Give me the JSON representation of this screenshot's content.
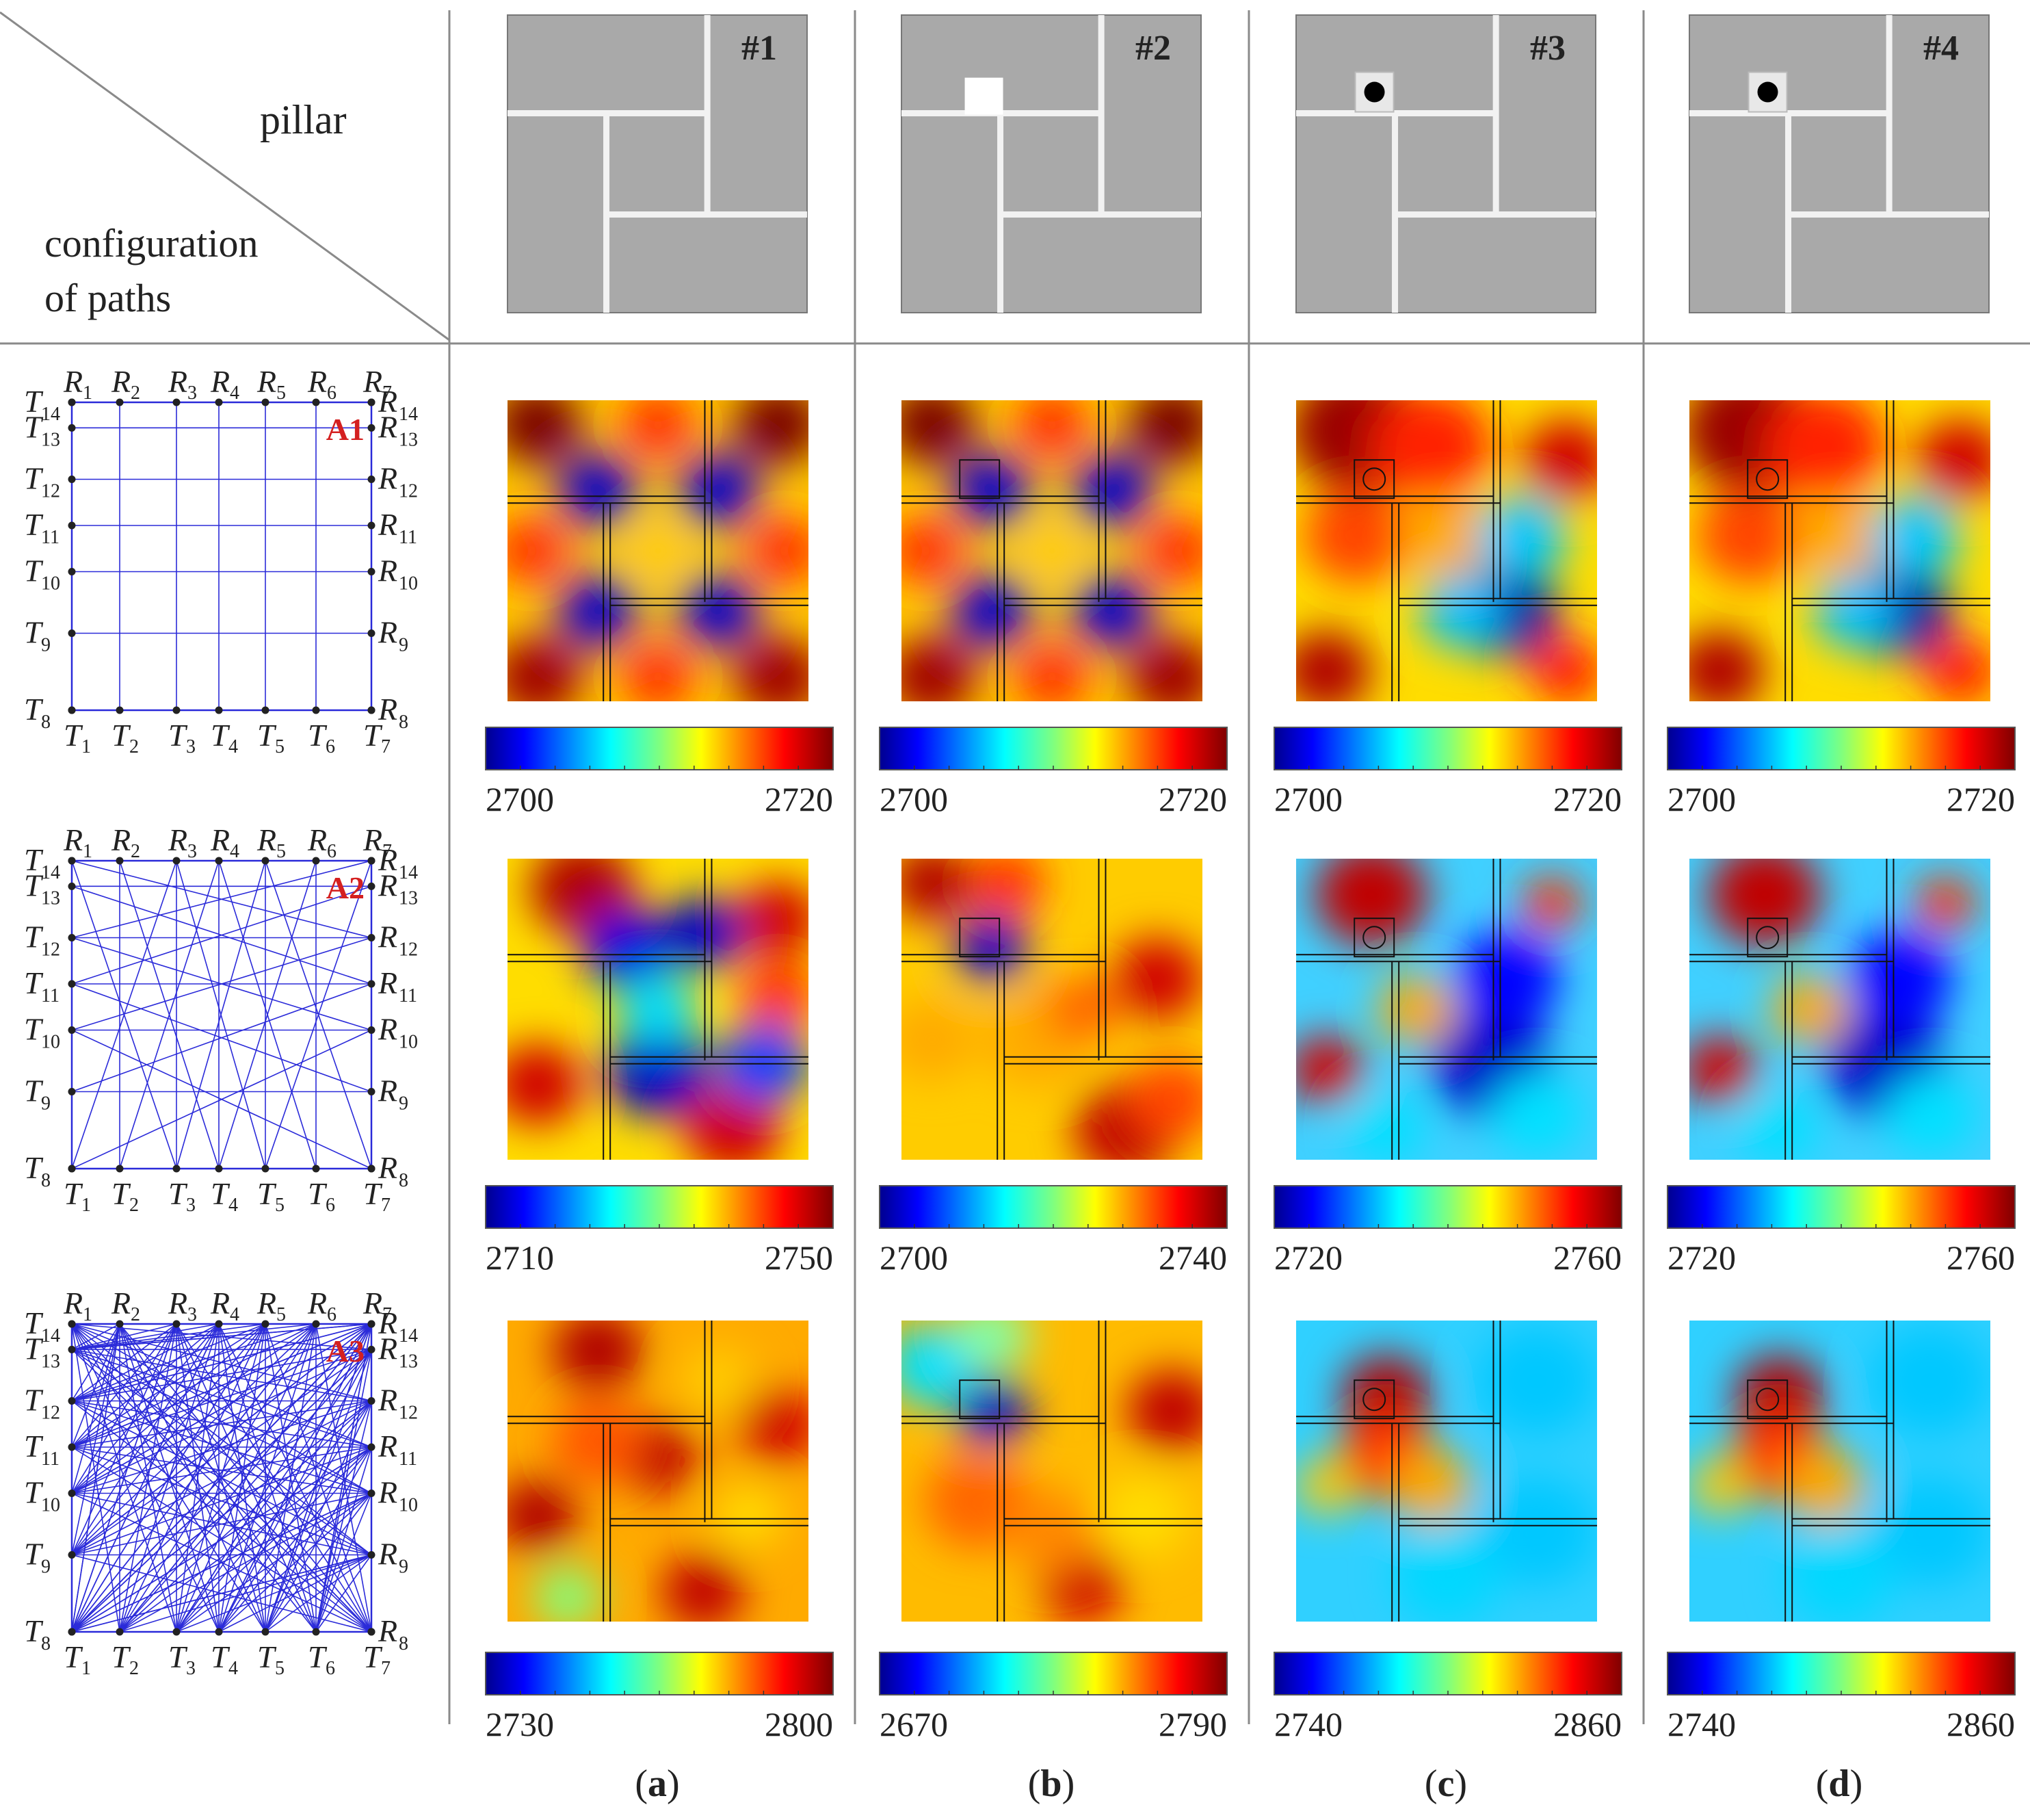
{
  "header": {
    "pillar_label": "pillar",
    "config_label_line1": "configuration",
    "config_label_line2": "of paths"
  },
  "pillars": [
    {
      "id": "#1",
      "has_pillar": false,
      "pillar_type": "none"
    },
    {
      "id": "#2",
      "has_pillar": true,
      "pillar_type": "empty"
    },
    {
      "id": "#3",
      "has_pillar": true,
      "pillar_type": "dot"
    },
    {
      "id": "#4",
      "has_pillar": true,
      "pillar_type": "dot"
    }
  ],
  "configurations": [
    {
      "id": "A1",
      "connectivity": "parallel"
    },
    {
      "id": "A2",
      "connectivity": "crossed"
    },
    {
      "id": "A3",
      "connectivity": "full"
    }
  ],
  "receiver_labels_top": [
    "R",
    "R",
    "R",
    "R",
    "R",
    "R",
    "R"
  ],
  "receiver_indices_top": [
    "1",
    "2",
    "3",
    "4",
    "5",
    "6",
    "7"
  ],
  "transmitter_labels_bottom": [
    "T",
    "T",
    "T",
    "T",
    "T",
    "T",
    "T"
  ],
  "transmitter_indices_bottom": [
    "1",
    "2",
    "3",
    "4",
    "5",
    "6",
    "7"
  ],
  "transmitter_labels_left": [
    "T",
    "T",
    "T",
    "T",
    "T",
    "T",
    "T"
  ],
  "transmitter_indices_left": [
    "14",
    "13",
    "12",
    "11",
    "10",
    "9",
    "8"
  ],
  "receiver_labels_right": [
    "R",
    "R",
    "R",
    "R",
    "R",
    "R",
    "R"
  ],
  "receiver_indices_right": [
    "14",
    "13",
    "12",
    "11",
    "10",
    "9",
    "8"
  ],
  "colorbars": [
    [
      "2700",
      "2720",
      "2700",
      "2720",
      "2700",
      "2720",
      "2700",
      "2720"
    ],
    [
      "2710",
      "2750",
      "2700",
      "2740",
      "2720",
      "2760",
      "2720",
      "2760"
    ],
    [
      "2730",
      "2800",
      "2670",
      "2790",
      "2740",
      "2860",
      "2740",
      "2860"
    ]
  ],
  "column_labels": [
    {
      "open": "(",
      "letter": "a",
      "close": ")"
    },
    {
      "open": "(",
      "letter": "b",
      "close": ")"
    },
    {
      "open": "(",
      "letter": "c",
      "close": ")"
    },
    {
      "open": "(",
      "letter": "d",
      "close": ")"
    }
  ],
  "colors": {
    "grey_fill": "#a9a9a9",
    "gap": "#f2f2f2",
    "path_blue": "#2b2bd9",
    "config_red": "#d42020",
    "node": "#222222"
  }
}
